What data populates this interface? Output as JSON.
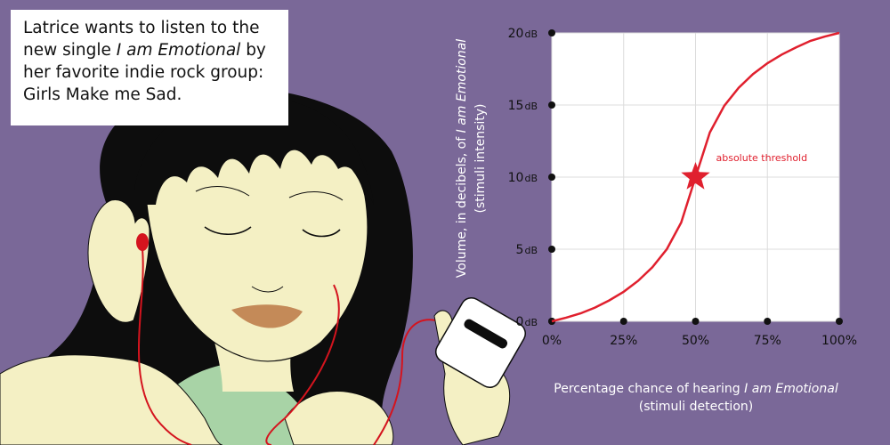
{
  "caption": {
    "line1": "Latrice wants to listen to the",
    "line2_pre": "new single ",
    "line2_em": "I am Emotional",
    "line2_post": " by",
    "line3": "her favorite indie rock group:",
    "line4": "Girls Make me Sad."
  },
  "icons": [
    "person-illustration",
    "earbuds-icon",
    "music-player-icon"
  ],
  "colors": {
    "background": "#7a6898",
    "curve": "#e0202e",
    "hair": "#0d0d0d",
    "skin": "#f4f0c4",
    "shirt": "#a8d3a6",
    "chart_bg": "#ffffff",
    "grid": "#dcdcdc"
  },
  "chart_data": {
    "type": "line",
    "x_tick_labels": [
      "0%",
      "25%",
      "50%",
      "75%",
      "100%"
    ],
    "x_ticks": [
      0,
      25,
      50,
      75,
      100
    ],
    "y_ticks": [
      0,
      5,
      10,
      15,
      20
    ],
    "y_tick_numbers": [
      "0",
      "5",
      "10",
      "15",
      "20"
    ],
    "y_unit": "dB",
    "xlim": [
      0,
      100
    ],
    "ylim": [
      0,
      20
    ],
    "xlabel_pre": "Percentage chance of hearing ",
    "xlabel_em": "I am Emotional",
    "xlabel_line2": "(stimuli detection)",
    "ylabel_pre": "Volume, in decibels, of ",
    "ylabel_em": "I am Emotional",
    "ylabel_line2": "(stimuli intensity)",
    "grid": true,
    "series": [
      {
        "x": [
          0,
          5,
          10,
          15,
          20,
          25,
          30,
          35,
          40,
          45,
          50,
          55,
          60,
          65,
          70,
          75,
          80,
          85,
          90,
          95,
          100
        ],
        "y": [
          0,
          0.25,
          0.55,
          0.95,
          1.45,
          2.05,
          2.8,
          3.75,
          5.0,
          6.85,
          10.0,
          13.1,
          14.95,
          16.2,
          17.15,
          17.9,
          18.5,
          19.0,
          19.45,
          19.75,
          20.0
        ]
      }
    ],
    "annotations": [
      {
        "text": "absolute threshold",
        "x": 50,
        "y": 10,
        "marker": "star"
      }
    ]
  }
}
